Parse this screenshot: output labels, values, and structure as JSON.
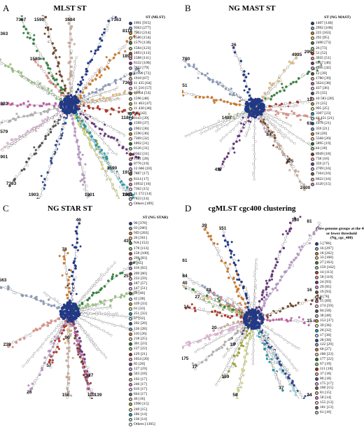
{
  "panels": [
    {
      "id": "a",
      "letter": "A",
      "title": "MLST ST",
      "legend_header": "ST (MLST)",
      "center": [
        100,
        128
      ],
      "labels": [
        "7363",
        "1893",
        "8114",
        "7363",
        "7367",
        "9363",
        "11864",
        "1580",
        "1918",
        "1901",
        "1590",
        "1584",
        "1893",
        "1901",
        "7363",
        "1579",
        "1590",
        "1903",
        "1902",
        "7363",
        "1903"
      ],
      "legend": [
        {
          "label": "1901 [915]",
          "color": "#1f3a93"
        },
        {
          "label": "9363 [277]",
          "color": "#8fa3c9"
        },
        {
          "label": "7363 [214]",
          "color": "#e07b1c"
        },
        {
          "label": "1580 [154]",
          "color": "#f2c27a"
        },
        {
          "label": "1579 [130]",
          "color": "#2e8b3a"
        },
        {
          "label": "1584 [123]",
          "color": "#9bcf78"
        },
        {
          "label": "1893 [113]",
          "color": "#c0392b"
        },
        {
          "label": "1588 [111]",
          "color": "#f1948a"
        },
        {
          "label": "8122 [106]",
          "color": "#6c3483"
        },
        {
          "label": "7822 [79]",
          "color": "#c39bd3"
        },
        {
          "label": "11990 [72]",
          "color": "#7b4a2a"
        },
        {
          "label": "1918 [67]",
          "color": "#d7b49e"
        },
        {
          "label": "11 435 [64]",
          "color": "#d35db0"
        },
        {
          "label": "11 516 [57]",
          "color": "#f5b7e6"
        },
        {
          "label": "11864 [54]",
          "color": "#555555"
        },
        {
          "label": "1596 [48]",
          "color": "#bbbbbb"
        },
        {
          "label": "11 463 [47]",
          "color": "#a4ad1f"
        },
        {
          "label": "11 430 [46]",
          "color": "#e3e58a"
        },
        {
          "label": "ND [42]",
          "color": "#17a2b8"
        },
        {
          "label": "8143 [39]",
          "color": "#a8dde8"
        },
        {
          "label": "1599 [37]",
          "color": "#2a4d9c"
        },
        {
          "label": "1902 [36]",
          "color": "#7fa2d8"
        },
        {
          "label": "1590 [36]",
          "color": "#e8731e"
        },
        {
          "label": "7369 [32]",
          "color": "#f7c89a"
        },
        {
          "label": "1892 [31]",
          "color": "#247a2e"
        },
        {
          "label": "8126 [31]",
          "color": "#93d189"
        },
        {
          "label": "9362 [31]",
          "color": "#b22222"
        },
        {
          "label": "1581 [28]",
          "color": "#f4a7a1"
        },
        {
          "label": "8776 [19]",
          "color": "#6f3f98"
        },
        {
          "label": "12 666 [18]",
          "color": "#c9aee0"
        },
        {
          "label": "7887 [17]",
          "color": "#8c5a3c"
        },
        {
          "label": "8114 [17]",
          "color": "#dbb8a3"
        },
        {
          "label": "10932 [16]",
          "color": "#e377c2"
        },
        {
          "label": "7362 [15]",
          "color": "#f9c6e8"
        },
        {
          "label": "11 172 [14]",
          "color": "#6d6d6d"
        },
        {
          "label": "7823 [14]",
          "color": "#c8c8c8"
        },
        {
          "label": "Others [189]",
          "color": "#ffffff"
        }
      ]
    },
    {
      "id": "b",
      "letter": "B",
      "title": "NG MAST ST",
      "legend_header": "ST (NG MAST)",
      "center": [
        104,
        132
      ],
      "labels": [
        "26",
        "1780",
        "51",
        "4935",
        "2992",
        "1407",
        "12",
        "61",
        "437",
        "84",
        "225",
        "2400"
      ],
      "legend": [
        {
          "label": "1407 [146]",
          "color": "#1f3a93"
        },
        {
          "label": "2992 [106]",
          "color": "#8fa3c9"
        },
        {
          "label": "225 [163]",
          "color": "#e07b1c"
        },
        {
          "label": "292 [95]",
          "color": "#f2c27a"
        },
        {
          "label": "2400 [73]",
          "color": "#2e8b3a"
        },
        {
          "label": "26 [73]",
          "color": "#9bcf78"
        },
        {
          "label": "51 [52]",
          "color": "#c0392b"
        },
        {
          "label": "3935 [51]",
          "color": "#f1948a"
        },
        {
          "label": "8317 [46]",
          "color": "#6c3483"
        },
        {
          "label": "4995 [42]",
          "color": "#c39bd3"
        },
        {
          "label": "12 [39]",
          "color": "#7b4a2a"
        },
        {
          "label": "1780 [39]",
          "color": "#d7b49e"
        },
        {
          "label": "5624 [38]",
          "color": "#d35db0"
        },
        {
          "label": "437 [36]",
          "color": "#f5b7e6"
        },
        {
          "label": "25 [35]",
          "color": "#555555"
        },
        {
          "label": "10 583 [28]",
          "color": "#bbbbbb"
        },
        {
          "label": "21 [25]",
          "color": "#a4ad1f"
        },
        {
          "label": "995 [25]",
          "color": "#e3e58a"
        },
        {
          "label": "3307 [23]",
          "color": "#17a2b8"
        },
        {
          "label": "10 451 [21]",
          "color": "#a8dde8"
        },
        {
          "label": "1978 [21]",
          "color": "#2a4d9c"
        },
        {
          "label": "359 [21]",
          "color": "#7fa2d8"
        },
        {
          "label": "64 [20]",
          "color": "#e8731e"
        },
        {
          "label": "5568 [20]",
          "color": "#f7c89a"
        },
        {
          "label": "5895 [19]",
          "color": "#247a2e"
        },
        {
          "label": "44 [18]",
          "color": "#93d189"
        },
        {
          "label": "8949 [18]",
          "color": "#b22222"
        },
        {
          "label": "738 [18]",
          "color": "#f4a7a1"
        },
        {
          "label": "359 [17]",
          "color": "#6f3f98"
        },
        {
          "label": "2709 [16]",
          "color": "#c9aee0"
        },
        {
          "label": "7164 [16]",
          "color": "#8c5a3c"
        },
        {
          "label": "8022 [16]",
          "color": "#dbb8a3"
        },
        {
          "label": "4120 [15]",
          "color": "#e377c2"
        }
      ]
    },
    {
      "id": "c",
      "letter": "C",
      "title": "NG STAR ST",
      "legend_header": "ST (NG STAR)",
      "center": [
        100,
        138
      ],
      "labels": [
        "46",
        "563",
        "78",
        "90",
        "439",
        "251",
        "57",
        "239",
        "127",
        "26",
        "110",
        "158",
        "139"
      ],
      "legend": [
        {
          "label": "90 [378]",
          "color": "#1f3a93"
        },
        {
          "label": "63 [260]",
          "color": "#8fa3c9"
        },
        {
          "label": "ND [203]",
          "color": "#e07b1c"
        },
        {
          "label": "26 [161]",
          "color": "#f2c27a"
        },
        {
          "label": "NA [152]",
          "color": "#2e8b3a"
        },
        {
          "label": "178 [113]",
          "color": "#9bcf78"
        },
        {
          "label": "158 [100]",
          "color": "#c0392b"
        },
        {
          "label": "299 [83]",
          "color": "#f1948a"
        },
        {
          "label": "7 [65]",
          "color": "#6c3483"
        },
        {
          "label": "416 [62]",
          "color": "#c39bd3"
        },
        {
          "label": "209 [60]",
          "color": "#7b4a2a"
        },
        {
          "label": "233 [59]",
          "color": "#d7b49e"
        },
        {
          "label": "187 [57]",
          "color": "#d35db0"
        },
        {
          "label": "147 [51]",
          "color": "#f5b7e6"
        },
        {
          "label": "36 [46]",
          "color": "#555555"
        },
        {
          "label": "42 [38]",
          "color": "#bbbbbb"
        },
        {
          "label": "439 [33]",
          "color": "#a4ad1f"
        },
        {
          "label": "61 [33]",
          "color": "#e3e58a"
        },
        {
          "label": "251 [32]",
          "color": "#17a2b8"
        },
        {
          "label": "57 [32]",
          "color": "#a8dde8"
        },
        {
          "label": "292 [28]",
          "color": "#2a4d9c"
        },
        {
          "label": "126 [28]",
          "color": "#7fa2d8"
        },
        {
          "label": "110 [26]",
          "color": "#e8731e"
        },
        {
          "label": "218 [25]",
          "color": "#f7c89a"
        },
        {
          "label": "301 [23]",
          "color": "#247a2e"
        },
        {
          "label": "127 [22]",
          "color": "#93d189"
        },
        {
          "label": "129 [21]",
          "color": "#b22222"
        },
        {
          "label": "1054 [20]",
          "color": "#f4a7a1"
        },
        {
          "label": "85 [20]",
          "color": "#6f3f98"
        },
        {
          "label": "127 [19]",
          "color": "#c9aee0"
        },
        {
          "label": "563 [18]",
          "color": "#8c5a3c"
        },
        {
          "label": "193 [17]",
          "color": "#dbb8a3"
        },
        {
          "label": "246 [17]",
          "color": "#e377c2"
        },
        {
          "label": "819 [17]",
          "color": "#f9c6e8"
        },
        {
          "label": "844 [17]",
          "color": "#6d6d6d"
        },
        {
          "label": "46 [16]",
          "color": "#c8c8c8"
        },
        {
          "label": "1996 [15]",
          "color": "#a4ad1f"
        },
        {
          "label": "249 [15]",
          "color": "#e3e58a"
        },
        {
          "label": "186 [14]",
          "color": "#17a2b8"
        },
        {
          "label": "136 [14]",
          "color": "#a8dde8"
        },
        {
          "label": "Others [1365]",
          "color": "#ffffff"
        }
      ]
    },
    {
      "id": "d",
      "letter": "D",
      "title": "cgMLST cgc400 clustering",
      "legend_header": "Core genome groups at the 400 or fewer threshold (Ng_cgc_400)",
      "center": [
        102,
        148
      ],
      "labels": [
        "151",
        "61",
        "39",
        "84",
        "40",
        "27",
        "14",
        "33",
        "180",
        "81",
        "16",
        "20",
        "15",
        "175",
        "18",
        "17",
        "159",
        "58",
        "37",
        "24",
        "34"
      ],
      "legend": [
        {
          "label": "5 [786]",
          "color": "#1f3a93"
        },
        {
          "label": "16 [297]",
          "color": "#8fa3c9"
        },
        {
          "label": "18 [262]",
          "color": "#e07b1c"
        },
        {
          "label": "33 [168]",
          "color": "#f2c27a"
        },
        {
          "label": "27 [163]",
          "color": "#2e8b3a"
        },
        {
          "label": "159 [162]",
          "color": "#9bcf78"
        },
        {
          "label": "14 [113]",
          "color": "#c0392b"
        },
        {
          "label": "58 [110]",
          "color": "#f1948a"
        },
        {
          "label": "24 [93]",
          "color": "#6c3483"
        },
        {
          "label": "29 [95]",
          "color": "#c39bd3"
        },
        {
          "label": "19 [93]",
          "color": "#7b4a2a"
        },
        {
          "label": "8 [76]",
          "color": "#d7b49e"
        },
        {
          "label": "15 [69]",
          "color": "#d35db0"
        },
        {
          "label": "174 [59]",
          "color": "#f5b7e6"
        },
        {
          "label": "84 [50]",
          "color": "#555555"
        },
        {
          "label": "38 [48]",
          "color": "#bbbbbb"
        },
        {
          "label": "153 [37]",
          "color": "#a4ad1f"
        },
        {
          "label": "39 [36]",
          "color": "#e3e58a"
        },
        {
          "label": "20 [32]",
          "color": "#17a2b8"
        },
        {
          "label": "17 [30]",
          "color": "#a8dde8"
        },
        {
          "label": "28 [30]",
          "color": "#2a4d9c"
        },
        {
          "label": "122 [29]",
          "color": "#7fa2d8"
        },
        {
          "label": "60 [27]",
          "color": "#e8731e"
        },
        {
          "label": "180 [23]",
          "color": "#f7c89a"
        },
        {
          "label": "177 [22]",
          "color": "#247a2e"
        },
        {
          "label": "67 [19]",
          "color": "#93d189"
        },
        {
          "label": "111 [18]",
          "color": "#b22222"
        },
        {
          "label": "37 [18]",
          "color": "#f4a7a1"
        },
        {
          "label": "86 [18]",
          "color": "#6f3f98"
        },
        {
          "label": "175 [17]",
          "color": "#c9aee0"
        },
        {
          "label": "160 [15]",
          "color": "#8c5a3c"
        },
        {
          "label": "81 [15]",
          "color": "#dbb8a3"
        },
        {
          "label": "58 [14]",
          "color": "#e377c2"
        },
        {
          "label": "155 [13]",
          "color": "#f9c6e8"
        },
        {
          "label": "181 [13]",
          "color": "#6d6d6d"
        },
        {
          "label": "61 [10]",
          "color": "#c8c8c8"
        }
      ]
    }
  ]
}
